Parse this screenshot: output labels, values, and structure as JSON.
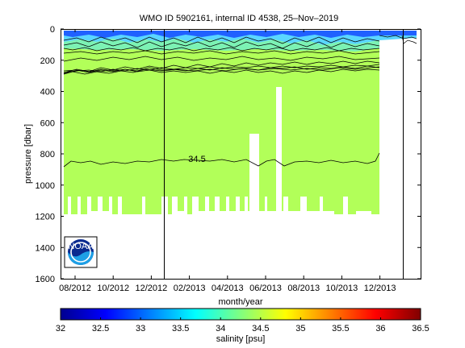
{
  "chart_data": {
    "type": "heatmap",
    "title": "WMO ID 5902161, internal ID 4538, 25–Nov–2019",
    "xlabel": "month/year",
    "ylabel": "pressure [dbar]",
    "x_ticks": [
      "08/2012",
      "10/2012",
      "12/2012",
      "02/2013",
      "04/2013",
      "06/2013",
      "08/2013",
      "10/2013",
      "12/2013"
    ],
    "y_ticks": [
      "0",
      "200",
      "400",
      "600",
      "800",
      "1000",
      "1200",
      "1400",
      "1600"
    ],
    "ylim": [
      1600,
      0
    ],
    "grid": false,
    "colorbar": {
      "label": "salinity [psu]",
      "ticks": [
        "32",
        "32.5",
        "33",
        "33.5",
        "34",
        "34.5",
        "35",
        "35.5",
        "36",
        "36.5"
      ],
      "range": [
        32,
        36.5
      ],
      "colormap": [
        "#00008f",
        "#0000ff",
        "#0080ff",
        "#00ffff",
        "#80ff80",
        "#ffff00",
        "#ff8000",
        "#ff0000",
        "#800000"
      ]
    },
    "contour_label": "34.5",
    "body_color": "#b2ff59",
    "surface_color": "#5ad6ff",
    "fresh_color": "#2060ff",
    "logo_label": "NOAA"
  }
}
